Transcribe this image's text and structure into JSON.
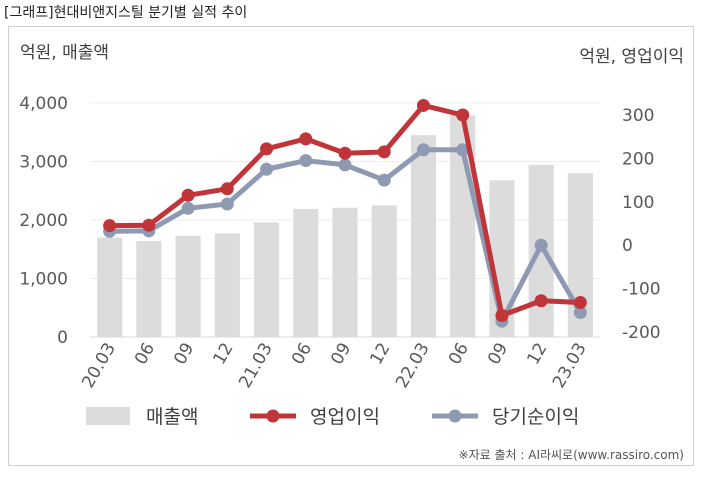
{
  "caption": "[그래프]현대비앤지스틸 분기별 실적 추이",
  "left_unit": "억원, 매출액",
  "right_unit": "억원, 영업이익",
  "source": "※자료 출처 : AI라씨로(www.rassiro.com)",
  "colors": {
    "revenue": "#dcdcdc",
    "operating_profit": "#c0353a",
    "net_profit": "#8e9ab2"
  },
  "chart_data": {
    "type": "bar+line",
    "categories": [
      "20.03",
      "06",
      "09",
      "12",
      "21.03",
      "06",
      "09",
      "12",
      "22.03",
      "06",
      "09",
      "12",
      "23.03"
    ],
    "left_axis": {
      "label": "억원, 매출액",
      "ylim": [
        0,
        4000
      ],
      "ticks": [
        "0",
        "1,000",
        "2,000",
        "3,000",
        "4,000"
      ],
      "tick_values": [
        0,
        1000,
        2000,
        3000,
        4000
      ]
    },
    "right_axis": {
      "label": "억원, 영업이익",
      "ylim": [
        -200,
        300
      ],
      "ticks": [
        "-200",
        "-100",
        "0",
        "100",
        "200",
        "300"
      ],
      "tick_values": [
        -200,
        -100,
        0,
        100,
        200,
        300
      ]
    },
    "series": [
      {
        "name": "매출액",
        "type": "bar",
        "axis": "left",
        "values": [
          1700,
          1640,
          1730,
          1770,
          1960,
          2190,
          2210,
          2250,
          3450,
          3790,
          2680,
          2940,
          2800
        ]
      },
      {
        "name": "영업이익",
        "type": "line",
        "axis": "right",
        "values": [
          45,
          46,
          115,
          130,
          222,
          245,
          212,
          215,
          322,
          300,
          -162,
          -128,
          -132
        ]
      },
      {
        "name": "당기순이익",
        "type": "line",
        "axis": "right",
        "values": [
          32,
          33,
          85,
          95,
          175,
          195,
          185,
          150,
          220,
          220,
          -175,
          0,
          -155
        ]
      }
    ],
    "legend": "bottom",
    "grid": true
  }
}
